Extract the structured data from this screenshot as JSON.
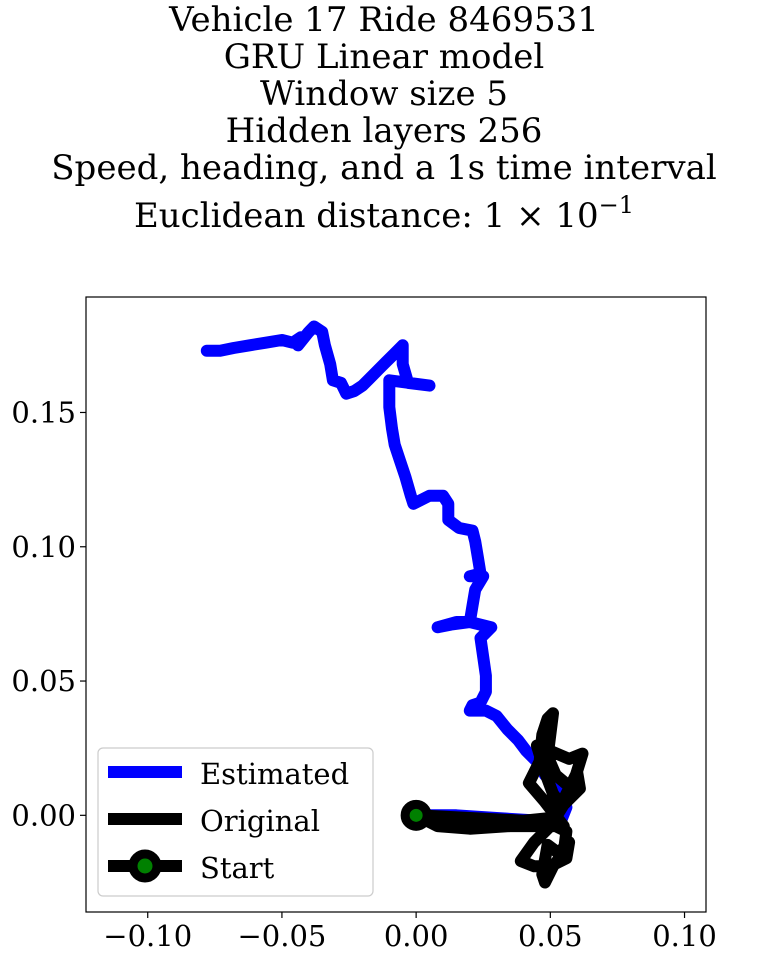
{
  "chart_data": {
    "type": "line",
    "title_lines": [
      "Vehicle 17 Ride 8469531",
      "GRU Linear model",
      "Window size 5",
      "Hidden layers 256",
      "Speed, heading, and a 1s time interval"
    ],
    "title_metric_prefix": "Euclidean distance: ",
    "title_metric_value": "1 × 10",
    "title_metric_exponent": "−1",
    "xlabel": "",
    "ylabel": "",
    "xlim": [
      -0.123,
      0.108
    ],
    "ylim": [
      -0.036,
      0.193
    ],
    "x_ticks": [
      -0.1,
      -0.05,
      0.0,
      0.05,
      0.1
    ],
    "x_tick_labels": [
      "−0.10",
      "−0.05",
      "0.00",
      "0.05",
      "0.10"
    ],
    "y_ticks": [
      0.0,
      0.05,
      0.1,
      0.15
    ],
    "y_tick_labels": [
      "0.00",
      "0.05",
      "0.10",
      "0.15"
    ],
    "grid": false,
    "legend_position": "lower-left",
    "series": [
      {
        "name": "Estimated",
        "color": "#0000ff",
        "points": [
          [
            -0.078,
            0.173
          ],
          [
            -0.073,
            0.173
          ],
          [
            -0.068,
            0.174
          ],
          [
            -0.062,
            0.175
          ],
          [
            -0.056,
            0.176
          ],
          [
            -0.05,
            0.177
          ],
          [
            -0.046,
            0.176
          ],
          [
            -0.043,
            0.178
          ],
          [
            -0.044,
            0.175
          ],
          [
            -0.04,
            0.18
          ],
          [
            -0.038,
            0.182
          ],
          [
            -0.035,
            0.18
          ],
          [
            -0.034,
            0.175
          ],
          [
            -0.032,
            0.168
          ],
          [
            -0.031,
            0.162
          ],
          [
            -0.028,
            0.161
          ],
          [
            -0.026,
            0.157
          ],
          [
            -0.023,
            0.158
          ],
          [
            -0.02,
            0.16
          ],
          [
            -0.017,
            0.163
          ],
          [
            -0.013,
            0.167
          ],
          [
            -0.008,
            0.172
          ],
          [
            -0.005,
            0.175
          ],
          [
            -0.005,
            0.168
          ],
          [
            -0.003,
            0.161
          ],
          [
            0.005,
            0.16
          ],
          [
            -0.01,
            0.162
          ],
          [
            -0.01,
            0.152
          ],
          [
            -0.009,
            0.144
          ],
          [
            -0.008,
            0.138
          ],
          [
            -0.006,
            0.132
          ],
          [
            -0.004,
            0.126
          ],
          [
            -0.002,
            0.119
          ],
          [
            -0.001,
            0.116
          ],
          [
            0.005,
            0.119
          ],
          [
            0.01,
            0.119
          ],
          [
            0.012,
            0.116
          ],
          [
            0.012,
            0.11
          ],
          [
            0.016,
            0.107
          ],
          [
            0.021,
            0.106
          ],
          [
            0.022,
            0.102
          ],
          [
            0.023,
            0.096
          ],
          [
            0.024,
            0.09
          ],
          [
            0.02,
            0.089
          ],
          [
            0.025,
            0.089
          ],
          [
            0.022,
            0.084
          ],
          [
            0.021,
            0.078
          ],
          [
            0.02,
            0.072
          ],
          [
            0.013,
            0.071
          ],
          [
            0.008,
            0.07
          ],
          [
            0.015,
            0.072
          ],
          [
            0.02,
            0.072
          ],
          [
            0.028,
            0.07
          ],
          [
            0.024,
            0.066
          ],
          [
            0.025,
            0.059
          ],
          [
            0.026,
            0.052
          ],
          [
            0.026,
            0.046
          ],
          [
            0.024,
            0.042
          ],
          [
            0.021,
            0.041
          ],
          [
            0.02,
            0.039
          ],
          [
            0.026,
            0.039
          ],
          [
            0.03,
            0.037
          ],
          [
            0.034,
            0.032
          ],
          [
            0.038,
            0.028
          ],
          [
            0.041,
            0.024
          ],
          [
            0.045,
            0.02
          ],
          [
            0.048,
            0.015
          ],
          [
            0.051,
            0.012
          ],
          [
            0.054,
            0.007
          ],
          [
            0.056,
            0.003
          ],
          [
            0.054,
            -0.002
          ],
          [
            0.052,
            -0.004
          ],
          [
            0.046,
            -0.002
          ],
          [
            0.03,
            -0.001
          ],
          [
            0.015,
            0.0
          ],
          [
            0.005,
            0.0
          ],
          [
            0.0,
            0.0
          ]
        ]
      },
      {
        "name": "Original",
        "color": "#000000",
        "points": [
          [
            0.0,
            0.0
          ],
          [
            0.02,
            -0.001
          ],
          [
            0.04,
            -0.002
          ],
          [
            0.05,
            -0.001
          ],
          [
            0.055,
            -0.004
          ],
          [
            0.048,
            0.005
          ],
          [
            0.042,
            0.012
          ],
          [
            0.046,
            0.02
          ],
          [
            0.047,
            0.03
          ],
          [
            0.049,
            0.036
          ],
          [
            0.051,
            0.038
          ],
          [
            0.05,
            0.03
          ],
          [
            0.049,
            0.022
          ],
          [
            0.052,
            0.015
          ],
          [
            0.058,
            0.01
          ],
          [
            0.062,
            0.023
          ],
          [
            0.057,
            0.021
          ],
          [
            0.05,
            0.024
          ],
          [
            0.045,
            0.026
          ],
          [
            0.048,
            0.016
          ],
          [
            0.051,
            0.008
          ],
          [
            0.054,
            0.004
          ],
          [
            0.06,
            0.016
          ],
          [
            0.061,
            0.01
          ],
          [
            0.055,
            0.004
          ],
          [
            0.05,
            -0.004
          ],
          [
            0.044,
            -0.01
          ],
          [
            0.039,
            -0.017
          ],
          [
            0.044,
            -0.019
          ],
          [
            0.05,
            -0.019
          ],
          [
            0.056,
            -0.016
          ],
          [
            0.057,
            -0.01
          ],
          [
            0.053,
            -0.014
          ],
          [
            0.049,
            -0.011
          ],
          [
            0.047,
            -0.022
          ],
          [
            0.048,
            -0.025
          ],
          [
            0.051,
            -0.019
          ],
          [
            0.055,
            -0.014
          ],
          [
            0.056,
            -0.006
          ],
          [
            0.052,
            -0.004
          ],
          [
            0.035,
            -0.004
          ],
          [
            0.02,
            -0.005
          ],
          [
            0.008,
            -0.004
          ],
          [
            0.0,
            0.0
          ]
        ]
      },
      {
        "name": "Start",
        "color": "#000000",
        "marker_face": "#008000",
        "points": [
          [
            0.0,
            0.0
          ]
        ]
      }
    ]
  }
}
